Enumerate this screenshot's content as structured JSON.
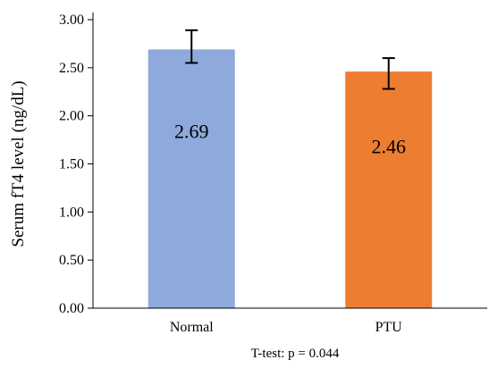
{
  "chart_data": {
    "type": "bar",
    "categories": [
      "Normal",
      "PTU"
    ],
    "values": [
      2.69,
      2.46
    ],
    "value_labels": [
      "2.69",
      "2.46"
    ],
    "error_bars": [
      {
        "low": 2.55,
        "high": 2.89
      },
      {
        "low": 2.28,
        "high": 2.6
      }
    ],
    "colors": [
      "#8EA9DB",
      "#ED7D31"
    ],
    "title": "",
    "xlabel": "",
    "ylabel": "Serum fT4 level (ng/dL)",
    "ylim": [
      0,
      3
    ],
    "yticks": [
      0,
      0.5,
      1,
      1.5,
      2,
      2.5,
      3
    ],
    "ytick_labels": [
      "0.00",
      "0.50",
      "1.00",
      "1.50",
      "2.00",
      "2.50",
      "3.00"
    ],
    "grid": false,
    "legend": "none",
    "annotation": "T-test: p = 0.044"
  }
}
